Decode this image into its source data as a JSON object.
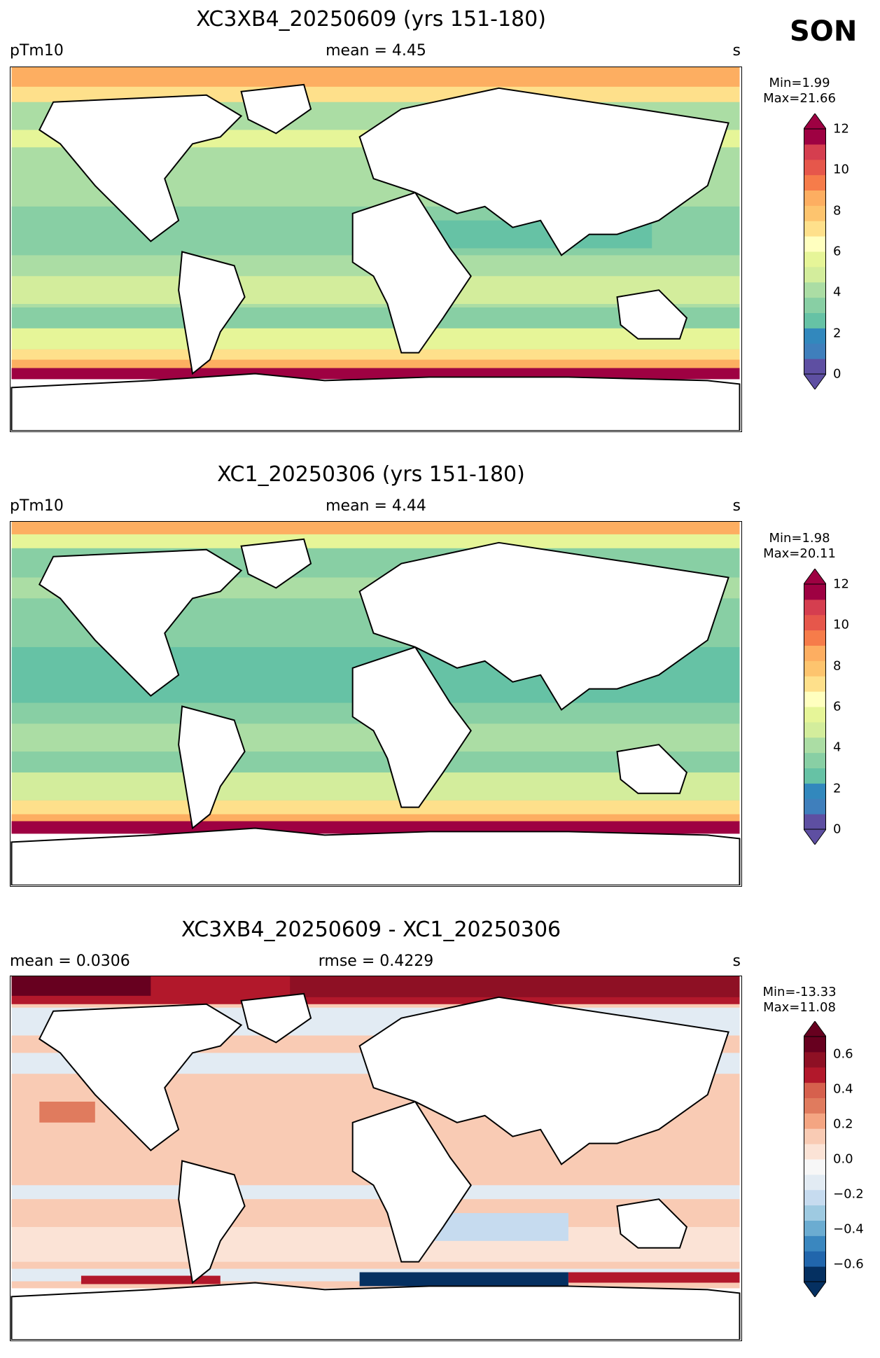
{
  "season": "SON",
  "panels": [
    {
      "title": "XC3XB4_20250609 (yrs 151-180)",
      "left_label": "pTm10",
      "center_label": "mean = 4.45",
      "right_label": "s",
      "min_text": "Min=1.99",
      "max_text": "Max=21.66",
      "colorbar": {
        "ticks": [
          "0",
          "2",
          "4",
          "6",
          "8",
          "10",
          "12"
        ],
        "colors": [
          "#5e4fa2",
          "#3f7fbc",
          "#3288bd",
          "#66c2a5",
          "#88cfa4",
          "#abdda4",
          "#d3ed9c",
          "#e6f598",
          "#ffffbf",
          "#fee08b",
          "#fdc46e",
          "#fdae61",
          "#f67c4a",
          "#e6574b",
          "#d53e4f",
          "#9e0142"
        ]
      }
    },
    {
      "title": "XC1_20250306 (yrs 151-180)",
      "left_label": "pTm10",
      "center_label": "mean = 4.44",
      "right_label": "s",
      "min_text": "Min=1.98",
      "max_text": "Max=20.11",
      "colorbar": {
        "ticks": [
          "0",
          "2",
          "4",
          "6",
          "8",
          "10",
          "12"
        ],
        "colors": [
          "#5e4fa2",
          "#3f7fbc",
          "#3288bd",
          "#66c2a5",
          "#88cfa4",
          "#abdda4",
          "#d3ed9c",
          "#e6f598",
          "#ffffbf",
          "#fee08b",
          "#fdc46e",
          "#fdae61",
          "#f67c4a",
          "#e6574b",
          "#d53e4f",
          "#9e0142"
        ]
      }
    },
    {
      "title": "XC3XB4_20250609 - XC1_20250306",
      "left_label": "mean = 0.0306",
      "center_label": "rmse = 0.4229",
      "right_label": "s",
      "min_text": "Min=-13.33",
      "max_text": "Max=11.08",
      "colorbar": {
        "ticks": [
          "−0.6",
          "−0.4",
          "−0.2",
          "0.0",
          "0.2",
          "0.4",
          "0.6"
        ],
        "colors": [
          "#053061",
          "#2166ac",
          "#3a87bf",
          "#6bacd1",
          "#9ecae1",
          "#c6dbef",
          "#e2ebf3",
          "#f7f7f7",
          "#fbe3d6",
          "#f9cbb4",
          "#f4a582",
          "#e07b5e",
          "#d6604d",
          "#b2182b",
          "#8e1024",
          "#67001f"
        ]
      }
    }
  ],
  "colors": {
    "land": "#ffffff",
    "coast": "#000000"
  }
}
